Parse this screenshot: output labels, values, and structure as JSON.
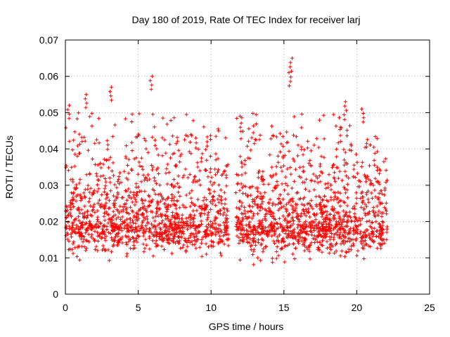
{
  "chart_data": {
    "type": "scatter",
    "title": "Day 180 of 2019, Rate Of TEC Index for receiver larj",
    "xlabel": "GPS time / hours",
    "ylabel": "ROTI / TECUs",
    "xlim": [
      0,
      25
    ],
    "ylim": [
      0,
      0.07
    ],
    "xticks": [
      "0",
      "5",
      "10",
      "15",
      "20",
      "25"
    ],
    "yticks": [
      "0",
      "0.01",
      "0.02",
      "0.03",
      "0.04",
      "0.05",
      "0.06",
      "0.07"
    ],
    "grid": true,
    "marker": "plus",
    "color": "#ff0000",
    "series": [
      {
        "x_range": [
          0,
          22.1
        ],
        "gap_hours": [
          11.2,
          11.7
        ],
        "typical_range": [
          0.008,
          0.045
        ],
        "peaks": [
          {
            "x": 3.1,
            "y": 0.057
          },
          {
            "x": 5.9,
            "y": 0.06
          },
          {
            "x": 15.5,
            "y": 0.065
          },
          {
            "x": 15.4,
            "y": 0.061
          },
          {
            "x": 19.2,
            "y": 0.053
          },
          {
            "x": 20.4,
            "y": 0.051
          },
          {
            "x": 0.2,
            "y": 0.052
          },
          {
            "x": 1.4,
            "y": 0.055
          }
        ]
      }
    ]
  }
}
